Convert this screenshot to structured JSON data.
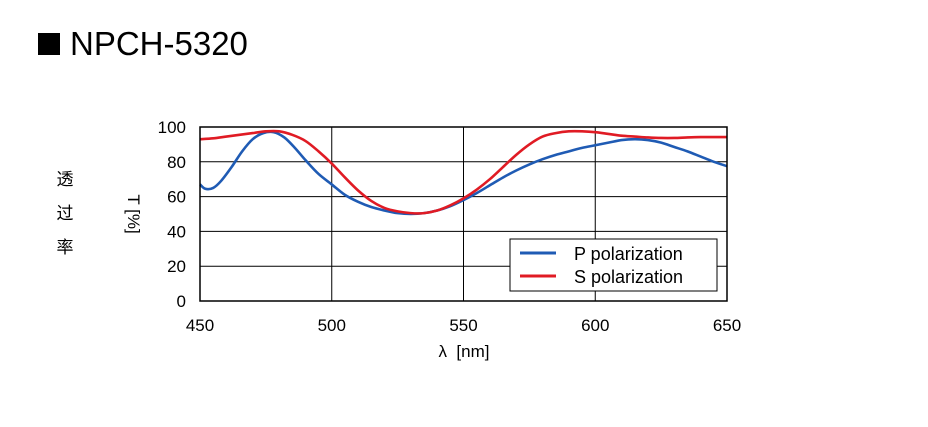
{
  "title": "NPCH-5320",
  "side_label_chars": [
    "透",
    "过",
    "率"
  ],
  "colors": {
    "p": "#1f5bb4",
    "s": "#e01b24",
    "grid": "#000000"
  },
  "chart_data": {
    "type": "line",
    "title": "",
    "xlabel": "λ  [nm]",
    "ylabel": "T [%]",
    "xlim": [
      450,
      650
    ],
    "ylim": [
      0,
      100
    ],
    "xticks": [
      450,
      500,
      550,
      600,
      650
    ],
    "yticks": [
      0,
      20,
      40,
      60,
      80,
      100
    ],
    "grid": true,
    "legend": "bottom-right",
    "series": [
      {
        "name": "P polarization",
        "color_key": "p",
        "x": [
          450,
          452,
          455,
          458,
          462,
          466,
          470,
          474,
          478,
          482,
          486,
          490,
          495,
          500,
          505,
          510,
          515,
          520,
          525,
          530,
          535,
          540,
          545,
          550,
          555,
          560,
          565,
          570,
          575,
          580,
          585,
          590,
          595,
          600,
          605,
          610,
          615,
          620,
          625,
          630,
          635,
          640,
          645,
          650
        ],
        "y": [
          67,
          64.5,
          65,
          69,
          77,
          86,
          93,
          96.5,
          97,
          94,
          88,
          81,
          73,
          67,
          61,
          57,
          54,
          52,
          50.5,
          50,
          50.5,
          52,
          54.5,
          58,
          62,
          66.5,
          71,
          75,
          78.5,
          81.5,
          84,
          86,
          88,
          89.5,
          91,
          92.5,
          93,
          92.5,
          91,
          88.5,
          86,
          83,
          80,
          77.5
        ]
      },
      {
        "name": "S polarization",
        "color_key": "s",
        "x": [
          450,
          455,
          460,
          465,
          470,
          475,
          480,
          485,
          490,
          495,
          500,
          505,
          510,
          515,
          520,
          525,
          530,
          535,
          540,
          545,
          550,
          555,
          560,
          565,
          570,
          575,
          580,
          585,
          590,
          595,
          600,
          605,
          610,
          615,
          620,
          625,
          630,
          635,
          640,
          645,
          650
        ],
        "y": [
          93,
          93.5,
          94.5,
          95.5,
          96.5,
          97.5,
          97.5,
          95.5,
          92,
          86,
          79,
          71,
          63.5,
          57.5,
          53.5,
          51.5,
          50.5,
          50.5,
          52,
          55,
          59,
          64,
          70,
          77,
          84,
          90,
          94.5,
          96.5,
          97.5,
          97.5,
          97,
          96,
          95,
          94.5,
          94,
          93.7,
          93.7,
          94,
          94.2,
          94.2,
          94.2
        ]
      }
    ]
  }
}
